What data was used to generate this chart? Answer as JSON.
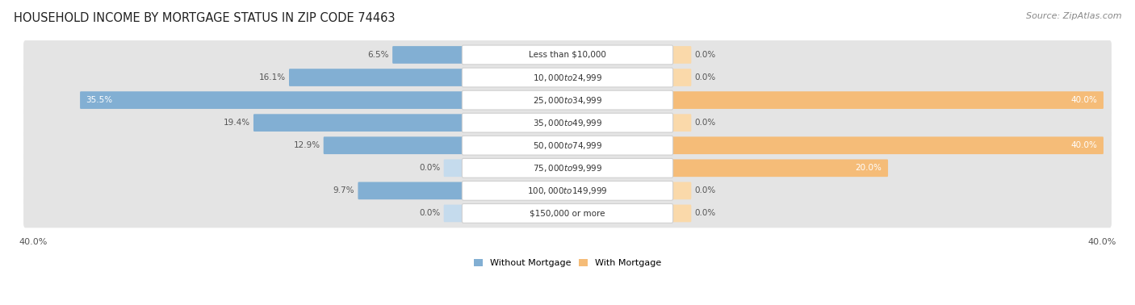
{
  "title": "HOUSEHOLD INCOME BY MORTGAGE STATUS IN ZIP CODE 74463",
  "source": "Source: ZipAtlas.com",
  "categories": [
    "Less than $10,000",
    "$10,000 to $24,999",
    "$25,000 to $34,999",
    "$35,000 to $49,999",
    "$50,000 to $74,999",
    "$75,000 to $99,999",
    "$100,000 to $149,999",
    "$150,000 or more"
  ],
  "without_mortgage": [
    6.5,
    16.1,
    35.5,
    19.4,
    12.9,
    0.0,
    9.7,
    0.0
  ],
  "with_mortgage": [
    0.0,
    0.0,
    40.0,
    0.0,
    40.0,
    20.0,
    0.0,
    0.0
  ],
  "x_max": 40.0,
  "color_without": "#82afd3",
  "color_with": "#f5bc78",
  "color_without_light": "#c5dbed",
  "color_with_light": "#fad9aa",
  "color_row_bg": "#e4e4e4",
  "color_row_bg_alt": "#ebebeb",
  "background_fig": "#ffffff",
  "title_fontsize": 10.5,
  "source_fontsize": 8,
  "bar_label_fontsize": 7.5,
  "category_fontsize": 7.5,
  "legend_fontsize": 8,
  "axis_label_fontsize": 8
}
